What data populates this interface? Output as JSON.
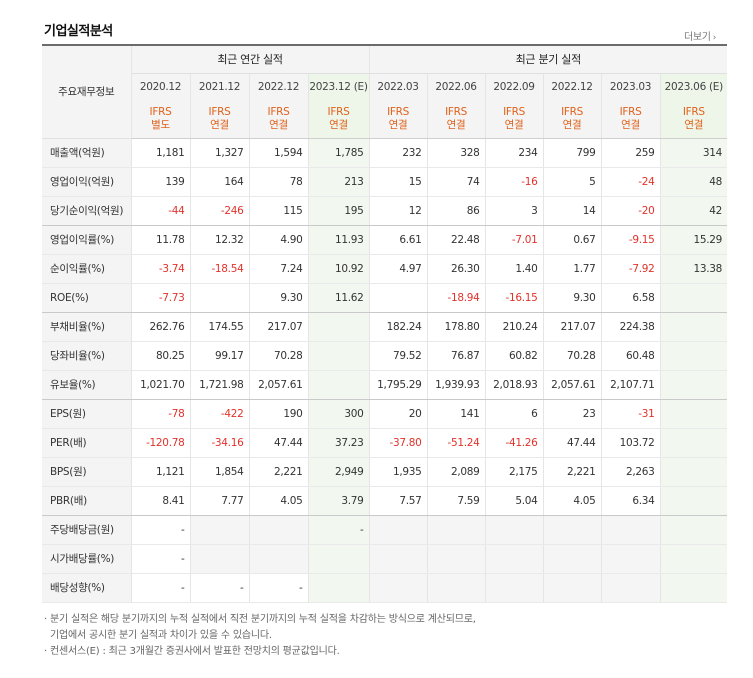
{
  "title": "기업실적분석",
  "more_label": "더보기",
  "header": {
    "row_label": "주요재무정보",
    "annual_group": "최근 연간 실적",
    "quarter_group": "최근 분기 실적",
    "periods": [
      "2020.12",
      "2021.12",
      "2022.12",
      "2023.12 (E)",
      "2022.03",
      "2022.06",
      "2022.09",
      "2022.12",
      "2023.03",
      "2023.06 (E)"
    ],
    "ifrs": [
      "IFRS",
      "IFRS",
      "IFRS",
      "IFRS",
      "IFRS",
      "IFRS",
      "IFRS",
      "IFRS",
      "IFRS",
      "IFRS"
    ],
    "basis": [
      "별도",
      "연결",
      "연결",
      "연결",
      "연결",
      "연결",
      "연결",
      "연결",
      "연결",
      "연결"
    ]
  },
  "rows": [
    {
      "label": "매출액(억원)",
      "values": [
        "1,181",
        "1,327",
        "1,594",
        "1,785",
        "232",
        "328",
        "234",
        "799",
        "259",
        "314"
      ]
    },
    {
      "label": "영업이익(억원)",
      "values": [
        "139",
        "164",
        "78",
        "213",
        "15",
        "74",
        "-16",
        "5",
        "-24",
        "48"
      ]
    },
    {
      "label": "당기순이익(억원)",
      "values": [
        "-44",
        "-246",
        "115",
        "195",
        "12",
        "86",
        "3",
        "14",
        "-20",
        "42"
      ]
    },
    {
      "label": "영업이익률(%)",
      "values": [
        "11.78",
        "12.32",
        "4.90",
        "11.93",
        "6.61",
        "22.48",
        "-7.01",
        "0.67",
        "-9.15",
        "15.29"
      ]
    },
    {
      "label": "순이익률(%)",
      "values": [
        "-3.74",
        "-18.54",
        "7.24",
        "10.92",
        "4.97",
        "26.30",
        "1.40",
        "1.77",
        "-7.92",
        "13.38"
      ]
    },
    {
      "label": "ROE(%)",
      "values": [
        "-7.73",
        "",
        "9.30",
        "11.62",
        "",
        "-18.94",
        "-16.15",
        "9.30",
        "6.58",
        ""
      ]
    },
    {
      "label": "부채비율(%)",
      "values": [
        "262.76",
        "174.55",
        "217.07",
        "",
        "182.24",
        "178.80",
        "210.24",
        "217.07",
        "224.38",
        ""
      ]
    },
    {
      "label": "당좌비율(%)",
      "values": [
        "80.25",
        "99.17",
        "70.28",
        "",
        "79.52",
        "76.87",
        "60.82",
        "70.28",
        "60.48",
        ""
      ]
    },
    {
      "label": "유보율(%)",
      "values": [
        "1,021.70",
        "1,721.98",
        "2,057.61",
        "",
        "1,795.29",
        "1,939.93",
        "2,018.93",
        "2,057.61",
        "2,107.71",
        ""
      ]
    },
    {
      "label": "EPS(원)",
      "values": [
        "-78",
        "-422",
        "190",
        "300",
        "20",
        "141",
        "6",
        "23",
        "-31",
        ""
      ]
    },
    {
      "label": "PER(배)",
      "values": [
        "-120.78",
        "-34.16",
        "47.44",
        "37.23",
        "-37.80",
        "-51.24",
        "-41.26",
        "47.44",
        "103.72",
        ""
      ]
    },
    {
      "label": "BPS(원)",
      "values": [
        "1,121",
        "1,854",
        "2,221",
        "2,949",
        "1,935",
        "2,089",
        "2,175",
        "2,221",
        "2,263",
        ""
      ]
    },
    {
      "label": "PBR(배)",
      "values": [
        "8.41",
        "7.77",
        "4.05",
        "3.79",
        "7.57",
        "7.59",
        "5.04",
        "4.05",
        "6.34",
        ""
      ]
    },
    {
      "label": "주당배당금(원)",
      "values": [
        "-",
        "",
        "",
        "-",
        "",
        "",
        "",
        "",
        "",
        ""
      ]
    },
    {
      "label": "시가배당률(%)",
      "values": [
        "-",
        "",
        "",
        "",
        "",
        "",
        "",
        "",
        "",
        ""
      ]
    },
    {
      "label": "배당성향(%)",
      "values": [
        "-",
        "-",
        "-",
        "",
        "",
        "",
        "",
        "",
        "",
        ""
      ]
    }
  ],
  "notes": [
    "분기 실적은 해당 분기까지의 누적 실적에서 직전 분기까지의 누적 실적을 차감하는 방식으로 계산되므로,",
    "기업에서 공시한 분기 실적과 차이가 있을 수 있습니다.",
    "컨센서스(E) : 최근 3개월간 증권사에서 발표한 전망치의 평균값입니다."
  ],
  "colors": {
    "negative": "#e2322b",
    "ifrs_label": "#e0611a",
    "estimate_bg": "#f2f8ef"
  }
}
